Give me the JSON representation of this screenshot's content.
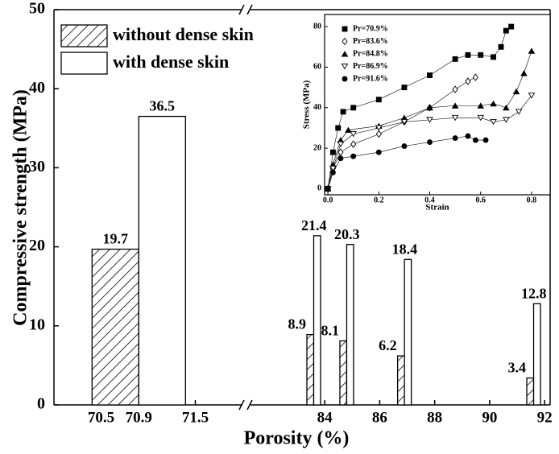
{
  "chart_data": [
    {
      "type": "bar",
      "xlabel": "Porosity (%)",
      "ylabel": "Compressive strength (MPa)",
      "x_segments": [
        {
          "xlim": [
            70.0,
            72.0
          ],
          "xticks": [
            70.5,
            70.9,
            71.5
          ]
        },
        {
          "xlim": [
            81.3,
            92.2
          ],
          "xticks": [
            84,
            86,
            88,
            90,
            92
          ]
        }
      ],
      "x": [
        70.9,
        83.6,
        84.8,
        86.9,
        91.6
      ],
      "series": [
        {
          "name": "without dense skin",
          "color": "#000000",
          "hatch": true,
          "values": [
            19.7,
            8.9,
            8.1,
            6.2,
            3.4
          ]
        },
        {
          "name": "with dense skin",
          "color": "#ffffff",
          "hatch": false,
          "values": [
            36.5,
            21.4,
            20.3,
            18.4,
            12.8
          ]
        }
      ],
      "ylim": [
        0,
        50
      ],
      "yticks": [
        0,
        10,
        20,
        30,
        40,
        50
      ],
      "legend": "upper left"
    },
    {
      "type": "line",
      "xlabel": "Strain",
      "ylabel": "Stress (MPa)",
      "xlim": [
        -0.013,
        0.873
      ],
      "xticks": [
        {
          "value": 0,
          "label": "0.0"
        },
        0.2,
        0.4,
        0.6,
        0.8
      ],
      "ylim": [
        -3,
        86
      ],
      "yticks": [
        0,
        20,
        40,
        60,
        80
      ],
      "legend": "upper left",
      "series": [
        {
          "name": "Pr=70.9%",
          "color": "#000000",
          "marker": "square",
          "x": [
            0,
            0.02,
            0.04,
            0.06,
            0.1,
            0.2,
            0.3,
            0.4,
            0.5,
            0.55,
            0.6,
            0.65,
            0.68,
            0.7,
            0.72
          ],
          "values": [
            0,
            18,
            30,
            38,
            40,
            44,
            50,
            56,
            64,
            66,
            66,
            65,
            70,
            78,
            80
          ]
        },
        {
          "name": "Pr=83.6%",
          "color": "#000000",
          "marker": "diamond-open",
          "x": [
            0,
            0.02,
            0.05,
            0.1,
            0.2,
            0.3,
            0.4,
            0.5,
            0.55,
            0.58
          ],
          "values": [
            0,
            10,
            18,
            22,
            27,
            33,
            40,
            49,
            53,
            55
          ]
        },
        {
          "name": "Pr=84.8%",
          "color": "#000000",
          "marker": "triangle",
          "x": [
            0,
            0.02,
            0.05,
            0.08,
            0.2,
            0.3,
            0.4,
            0.5,
            0.6,
            0.65,
            0.7,
            0.74,
            0.77,
            0.8
          ],
          "values": [
            0,
            12,
            24,
            29,
            31,
            35,
            40,
            41,
            41,
            42,
            40,
            48,
            57,
            68
          ]
        },
        {
          "name": "Pr=86.9%",
          "color": "#000000",
          "marker": "triangle-down-open",
          "x": [
            0,
            0.02,
            0.05,
            0.1,
            0.2,
            0.3,
            0.4,
            0.5,
            0.6,
            0.65,
            0.7,
            0.75,
            0.8
          ],
          "values": [
            0,
            10,
            22,
            27,
            30,
            33,
            34,
            35,
            35,
            33,
            34,
            38,
            46
          ]
        },
        {
          "name": "Pr=91.6%",
          "color": "#000000",
          "marker": "circle",
          "x": [
            0,
            0.02,
            0.05,
            0.1,
            0.2,
            0.3,
            0.4,
            0.5,
            0.55,
            0.58,
            0.62
          ],
          "values": [
            0,
            8,
            15,
            16,
            18,
            21,
            23,
            25,
            26,
            24,
            24
          ]
        }
      ]
    }
  ]
}
